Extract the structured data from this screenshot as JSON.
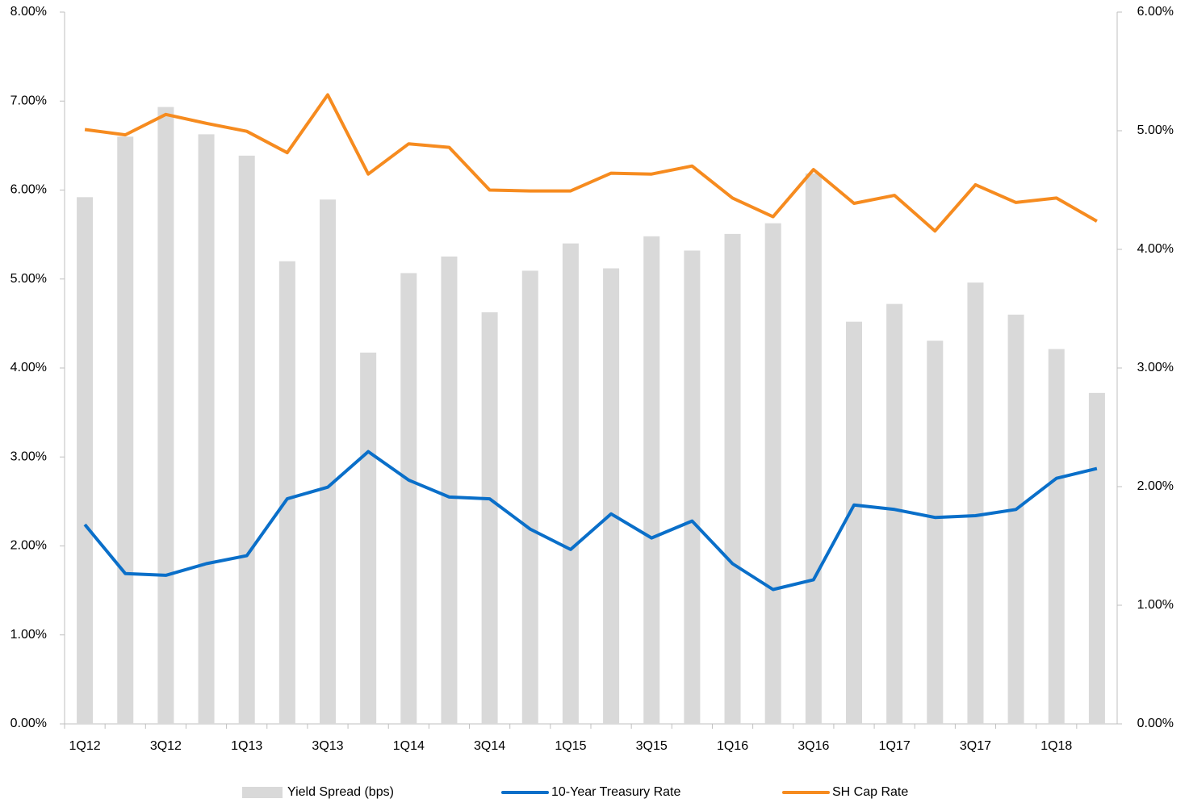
{
  "chart_data": {
    "type": "bar",
    "categories": [
      "1Q12",
      null,
      "3Q12",
      null,
      "1Q13",
      null,
      "3Q13",
      null,
      "1Q14",
      null,
      "3Q14",
      null,
      "1Q15",
      null,
      "3Q15",
      null,
      "1Q16",
      null,
      "3Q16",
      null,
      "1Q17",
      null,
      "3Q17",
      null,
      "1Q18",
      null
    ],
    "series": [
      {
        "name": "Yield Spread (bps)",
        "type": "bar",
        "axis": "y2",
        "color": "#d9d9d9",
        "values": [
          4.44,
          4.95,
          5.2,
          4.97,
          4.79,
          3.9,
          4.42,
          3.13,
          3.8,
          3.94,
          3.47,
          3.82,
          4.05,
          3.84,
          4.11,
          3.99,
          4.13,
          4.22,
          4.64,
          3.39,
          3.54,
          3.23,
          3.72,
          3.45,
          3.16,
          2.79
        ]
      },
      {
        "name": "10-Year Treasury Rate",
        "type": "line",
        "color": "#0a6fc9",
        "values": [
          2.24,
          1.69,
          1.67,
          1.8,
          1.89,
          2.53,
          2.66,
          3.06,
          2.74,
          2.55,
          2.53,
          2.19,
          1.96,
          2.36,
          2.09,
          2.28,
          1.8,
          1.51,
          1.62,
          2.46,
          2.41,
          2.32,
          2.34,
          2.41,
          2.76,
          2.87
        ]
      },
      {
        "name": "SH Cap Rate",
        "type": "line",
        "color": "#f68b1f",
        "values": [
          6.68,
          6.62,
          6.85,
          6.75,
          6.66,
          6.42,
          7.07,
          6.18,
          6.52,
          6.48,
          6.0,
          5.99,
          5.99,
          6.19,
          6.18,
          6.27,
          5.91,
          5.7,
          6.23,
          5.85,
          5.94,
          5.54,
          6.06,
          5.86,
          5.91,
          5.65
        ]
      }
    ],
    "ylim": [
      0,
      8
    ],
    "yticks": [
      {
        "value": 0,
        "label": "0.00%"
      },
      {
        "value": 1,
        "label": "1.00%"
      },
      {
        "value": 2,
        "label": "2.00%"
      },
      {
        "value": 3,
        "label": "3.00%"
      },
      {
        "value": 4,
        "label": "4.00%"
      },
      {
        "value": 5,
        "label": "5.00%"
      },
      {
        "value": 6,
        "label": "6.00%"
      },
      {
        "value": 7,
        "label": "7.00%"
      },
      {
        "value": 8,
        "label": "8.00%"
      }
    ],
    "y2lim": [
      0,
      6
    ],
    "y2ticks": [
      {
        "value": 0,
        "label": "0.00%"
      },
      {
        "value": 1,
        "label": "1.00%"
      },
      {
        "value": 2,
        "label": "2.00%"
      },
      {
        "value": 3,
        "label": "3.00%"
      },
      {
        "value": 4,
        "label": "4.00%"
      },
      {
        "value": 5,
        "label": "5.00%"
      },
      {
        "value": 6,
        "label": "6.00%"
      }
    ],
    "legend": "bottom"
  }
}
